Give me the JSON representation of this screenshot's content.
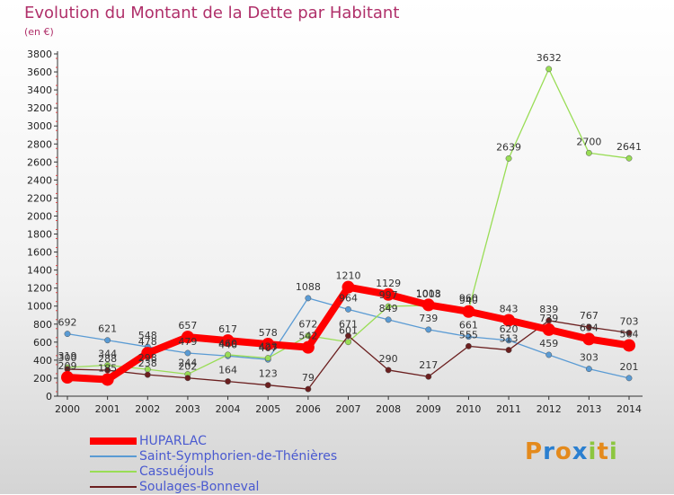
{
  "header": {
    "title": "Evolution du Montant de la Dette par Habitant",
    "unit": "(en €)"
  },
  "logo": {
    "text": "Proxiti",
    "letters": [
      "P",
      "r",
      "o",
      "x",
      "i",
      "t",
      "i"
    ],
    "colors": [
      "#e48a1c",
      "#2a7fd0",
      "#e48a1c",
      "#2a7fd0",
      "#8cc63f",
      "#e48a1c",
      "#8cc63f"
    ]
  },
  "chart_data": {
    "type": "line",
    "title": "Evolution du Montant de la Dette par Habitant",
    "ylabel": "(en €)",
    "xlabel": "",
    "x": [
      "2000",
      "2001",
      "2002",
      "2003",
      "2004",
      "2005",
      "2006",
      "2007",
      "2008",
      "2009",
      "2010",
      "2011",
      "2012",
      "2013",
      "2014"
    ],
    "ylim": [
      0,
      3800
    ],
    "yticks": [
      0,
      200,
      400,
      600,
      800,
      1000,
      1200,
      1400,
      1600,
      1800,
      2000,
      2200,
      2400,
      2600,
      2800,
      3000,
      3200,
      3400,
      3600,
      3800
    ],
    "grid": false,
    "legend_position": "bottom-left",
    "series": [
      {
        "name": "HUPARLAC",
        "color": "#ff0000",
        "values": [
          209,
          185,
          478,
          657,
          617,
          578,
          542,
          1210,
          1129,
          1013,
          940,
          843,
          739,
          634,
          564
        ]
      },
      {
        "name": "Saint-Symphorien-de-Thénières",
        "color": "#5a9bd4",
        "values": [
          692,
          621,
          548,
          479,
          446,
          407,
          1088,
          964,
          849,
          739,
          661,
          620,
          459,
          303,
          201
        ]
      },
      {
        "name": "Cassuéjouls",
        "color": "#99dd55",
        "values": [
          319,
          344,
          298,
          244,
          460,
          423,
          672,
          601,
          997,
          1008,
          960,
          2639,
          3632,
          2700,
          2641
        ]
      },
      {
        "name": "Soulages-Bonneval",
        "color": "#6b1f1f",
        "values": [
          300,
          288,
          238,
          202,
          164,
          123,
          79,
          671,
          290,
          217,
          555,
          513,
          839,
          767,
          703
        ]
      }
    ]
  }
}
